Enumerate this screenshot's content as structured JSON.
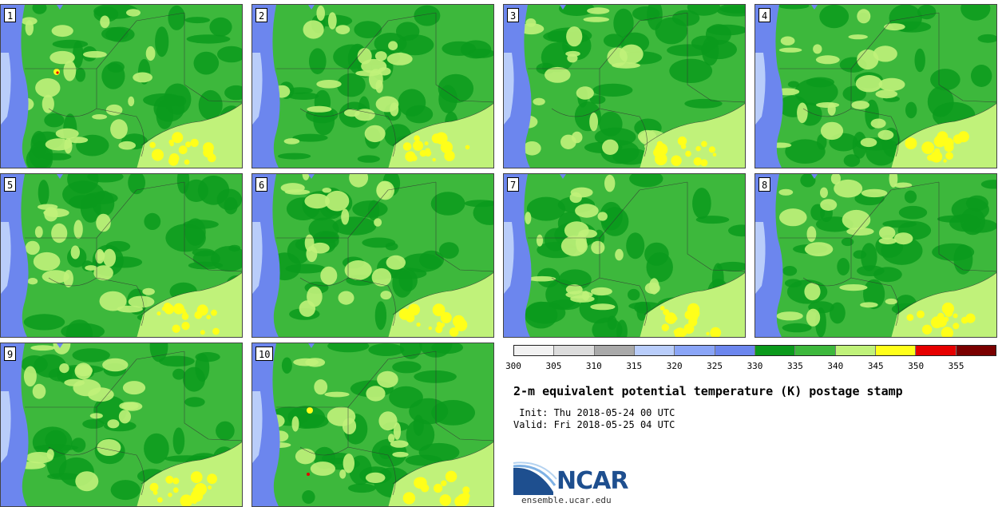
{
  "members": [
    "1",
    "2",
    "3",
    "4",
    "5",
    "6",
    "7",
    "8",
    "9",
    "10"
  ],
  "colorbar": {
    "ticks": [
      "300",
      "305",
      "310",
      "315",
      "320",
      "325",
      "330",
      "335",
      "340",
      "345",
      "350",
      "355"
    ],
    "colors": [
      "#f2f2f2",
      "#dcdcdc",
      "#a9a9a9",
      "#b9cdfa",
      "#8aa5f7",
      "#6c86ee",
      "#0b9a1c",
      "#3db83c",
      "#c0f27a",
      "#ffff1a",
      "#e60000",
      "#7a0000"
    ]
  },
  "title": "2-m equivalent potential temperature (K) postage stamp",
  "init_line": " Init: Thu 2018-05-24 00 UTC",
  "valid_line": "Valid: Fri 2018-05-25 04 UTC",
  "logo": {
    "text": "NCAR",
    "url": "ensemble.ucar.edu",
    "color": "#1e4f8f"
  }
}
